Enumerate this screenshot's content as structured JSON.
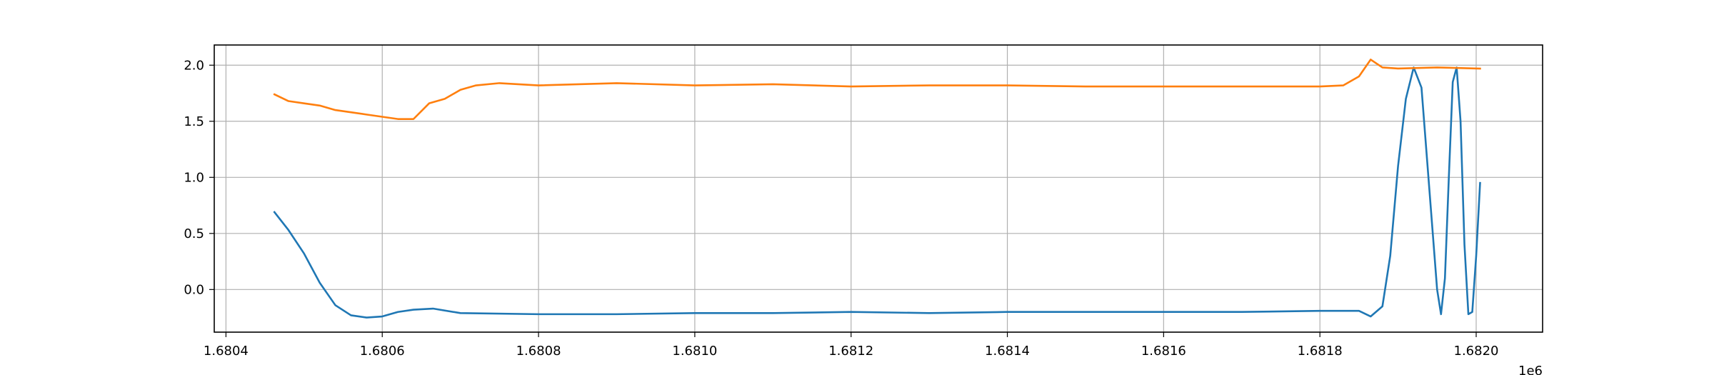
{
  "chart_data": {
    "type": "line",
    "title": "",
    "xlabel": "",
    "ylabel": "",
    "x_offset_label": "1e6",
    "xlim": [
      1680385,
      1682085
    ],
    "ylim": [
      -0.38,
      2.18
    ],
    "grid": true,
    "x_ticks": [
      {
        "value": 1680400,
        "label": "1.6804"
      },
      {
        "value": 1680600,
        "label": "1.6806"
      },
      {
        "value": 1680800,
        "label": "1.6808"
      },
      {
        "value": 1681000,
        "label": "1.6810"
      },
      {
        "value": 1681200,
        "label": "1.6812"
      },
      {
        "value": 1681400,
        "label": "1.6814"
      },
      {
        "value": 1681600,
        "label": "1.6816"
      },
      {
        "value": 1681800,
        "label": "1.6818"
      },
      {
        "value": 1682000,
        "label": "1.6820"
      }
    ],
    "y_ticks": [
      {
        "value": 0.0,
        "label": "0.0"
      },
      {
        "value": 0.5,
        "label": "0.5"
      },
      {
        "value": 1.0,
        "label": "1.0"
      },
      {
        "value": 1.5,
        "label": "1.5"
      },
      {
        "value": 2.0,
        "label": "2.0"
      }
    ],
    "series": [
      {
        "color": "#1f77b4",
        "x": [
          1680462,
          1680480,
          1680500,
          1680520,
          1680540,
          1680560,
          1680580,
          1680600,
          1680620,
          1680640,
          1680665,
          1680700,
          1680800,
          1680900,
          1681000,
          1681100,
          1681200,
          1681300,
          1681400,
          1681500,
          1681600,
          1681700,
          1681800,
          1681850,
          1681865,
          1681880,
          1681890,
          1681900,
          1681910,
          1681920,
          1681930,
          1681940,
          1681950,
          1681955,
          1681960,
          1681965,
          1681970,
          1681975,
          1681980,
          1681985,
          1681990,
          1681995,
          1682000,
          1682005
        ],
        "y": [
          0.69,
          0.53,
          0.32,
          0.06,
          -0.14,
          -0.23,
          -0.25,
          -0.24,
          -0.2,
          -0.18,
          -0.17,
          -0.21,
          -0.22,
          -0.22,
          -0.21,
          -0.21,
          -0.2,
          -0.21,
          -0.2,
          -0.2,
          -0.2,
          -0.2,
          -0.19,
          -0.19,
          -0.24,
          -0.15,
          0.3,
          1.1,
          1.7,
          1.98,
          1.8,
          0.9,
          0.0,
          -0.22,
          0.1,
          1.0,
          1.85,
          1.98,
          1.5,
          0.4,
          -0.22,
          -0.2,
          0.3,
          0.95
        ]
      },
      {
        "color": "#ff7f0e",
        "x": [
          1680462,
          1680480,
          1680500,
          1680520,
          1680540,
          1680560,
          1680580,
          1680600,
          1680620,
          1680640,
          1680660,
          1680680,
          1680700,
          1680720,
          1680750,
          1680800,
          1680900,
          1681000,
          1681100,
          1681200,
          1681300,
          1681400,
          1681500,
          1681600,
          1681700,
          1681800,
          1681830,
          1681850,
          1681865,
          1681880,
          1681900,
          1681950,
          1682005
        ],
        "y": [
          1.74,
          1.68,
          1.66,
          1.64,
          1.6,
          1.58,
          1.56,
          1.54,
          1.52,
          1.52,
          1.66,
          1.7,
          1.78,
          1.82,
          1.84,
          1.82,
          1.84,
          1.82,
          1.83,
          1.81,
          1.82,
          1.82,
          1.81,
          1.81,
          1.81,
          1.81,
          1.82,
          1.9,
          2.05,
          1.98,
          1.97,
          1.98,
          1.97
        ]
      }
    ]
  }
}
